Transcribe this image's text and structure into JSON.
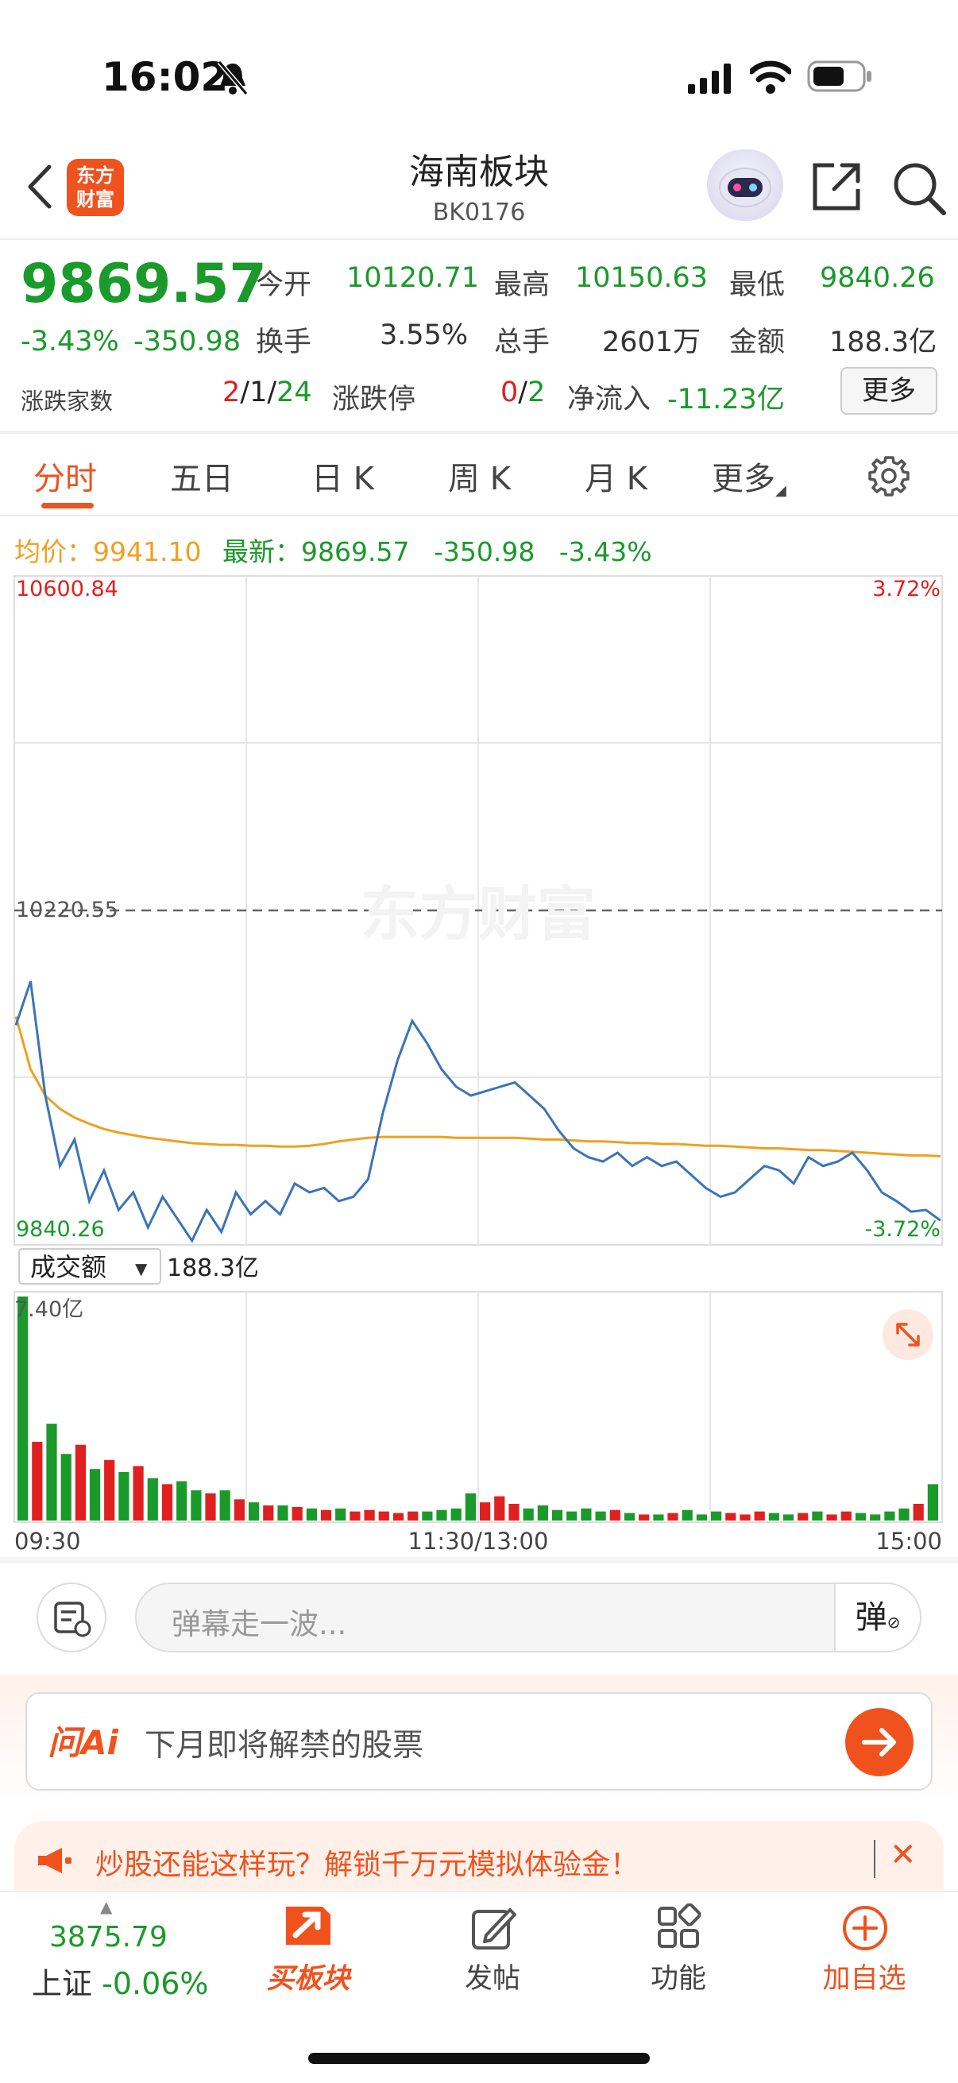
{
  "status_bar": {
    "time": "16:02"
  },
  "header": {
    "logo_text_line1": "东方",
    "logo_text_line2": "财富",
    "title": "海南板块",
    "subtitle": "BK0176"
  },
  "quote": {
    "price": "9869.57",
    "change_pct": "-3.43%",
    "change_abs": "-350.98",
    "open_label": "今开",
    "open": "10120.71",
    "high_label": "最高",
    "high": "10150.63",
    "low_label": "最低",
    "low": "9840.26",
    "turnover_label": "换手",
    "turnover": "3.55%",
    "volume_label": "总手",
    "volume": "2601万",
    "amount_label": "金额",
    "amount": "188.3亿",
    "updown_label": "涨跌家数",
    "updown_up": "2",
    "updown_flat": "1",
    "updown_down": "24",
    "limit_label": "涨跌停",
    "limit_up": "0",
    "limit_down": "2",
    "netflow_label": "净流入",
    "netflow": "-11.23亿",
    "more_label": "更多"
  },
  "tabs": [
    "分时",
    "五日",
    "日 K",
    "周 K",
    "月 K",
    "更多"
  ],
  "legend": {
    "avg_label": "均价：",
    "avg": "9941.10",
    "latest_label": "最新：",
    "latest": "9869.57",
    "latest_change": "-350.98",
    "latest_pct": "-3.43%"
  },
  "chart_data": {
    "type": "line",
    "y_top_label": "10600.84",
    "y_mid_label": "10220.55",
    "y_bottom_label": "9840.26",
    "pct_top_label": "3.72%",
    "pct_bottom_label": "-3.72%",
    "ylim": [
      9840.26,
      10600.84
    ],
    "watermark": "东方财富",
    "series": [
      {
        "values": [
          10090,
          10140,
          10010,
          9930,
          9960,
          9890,
          9925,
          9880,
          9900,
          9860,
          9895,
          9870,
          9845,
          9880,
          9855,
          9900,
          9875,
          9890,
          9875,
          9910,
          9900,
          9905,
          9890,
          9895,
          9915,
          9990,
          10050,
          10095,
          10070,
          10040,
          10020,
          10010,
          10015,
          10020,
          10025,
          10010,
          9995,
          9970,
          9950,
          9940,
          9935,
          9945,
          9930,
          9940,
          9930,
          9935,
          9920,
          9905,
          9895,
          9900,
          9915,
          9930,
          9925,
          9910,
          9940,
          9930,
          9935,
          9945,
          9925,
          9900,
          9890,
          9878,
          9880,
          9868
        ]
      },
      {
        "values": [
          10100,
          10040,
          10010,
          9995,
          9985,
          9978,
          9972,
          9968,
          9965,
          9962,
          9960,
          9958,
          9956,
          9955,
          9954,
          9954,
          9953,
          9953,
          9952,
          9952,
          9953,
          9955,
          9958,
          9960,
          9962,
          9963,
          9963,
          9963,
          9963,
          9963,
          9962,
          9962,
          9962,
          9962,
          9962,
          9961,
          9960,
          9960,
          9959,
          9958,
          9958,
          9957,
          9956,
          9956,
          9955,
          9955,
          9954,
          9953,
          9953,
          9952,
          9951,
          9950,
          9950,
          9949,
          9948,
          9948,
          9947,
          9946,
          9945,
          9944,
          9943,
          9942,
          9942,
          9941
        ]
      }
    ],
    "volume_label": "成交额",
    "volume_total": "188.3亿",
    "volume_max_label": "7.40亿",
    "volume_max": 7.4,
    "volume_values": [
      7.4,
      2.6,
      3.2,
      2.2,
      2.5,
      1.7,
      2.0,
      1.6,
      1.8,
      1.4,
      1.2,
      1.3,
      1.0,
      0.9,
      1.0,
      0.7,
      0.6,
      0.5,
      0.5,
      0.45,
      0.4,
      0.35,
      0.4,
      0.3,
      0.35,
      0.3,
      0.25,
      0.3,
      0.3,
      0.35,
      0.4,
      0.9,
      0.6,
      0.8,
      0.55,
      0.4,
      0.5,
      0.35,
      0.3,
      0.4,
      0.3,
      0.35,
      0.25,
      0.2,
      0.2,
      0.25,
      0.35,
      0.2,
      0.3,
      0.25,
      0.2,
      0.3,
      0.25,
      0.2,
      0.25,
      0.3,
      0.2,
      0.3,
      0.25,
      0.2,
      0.3,
      0.4,
      0.55,
      1.2
    ],
    "x_labels": [
      "09:30",
      "11:30/13:00",
      "15:00"
    ]
  },
  "danmu": {
    "placeholder": "弹幕走一波...",
    "toggle_label": "弹"
  },
  "ai_bar": {
    "brand": "问Ai",
    "prompt": "下月即将解禁的股票"
  },
  "promo": {
    "text": "炒股还能这样玩？解锁千万元模拟体验金！"
  },
  "bottom_nav": {
    "index_value": "3875.79",
    "index_name": "上证",
    "index_change": "-0.06%",
    "items": [
      "买板块",
      "发帖",
      "功能",
      "加自选"
    ]
  },
  "colors": {
    "up": "#e02020",
    "down": "#1a9a2a",
    "price_line": "#3b74b8",
    "avg_line": "#f0a020",
    "accent": "#f0521e"
  }
}
